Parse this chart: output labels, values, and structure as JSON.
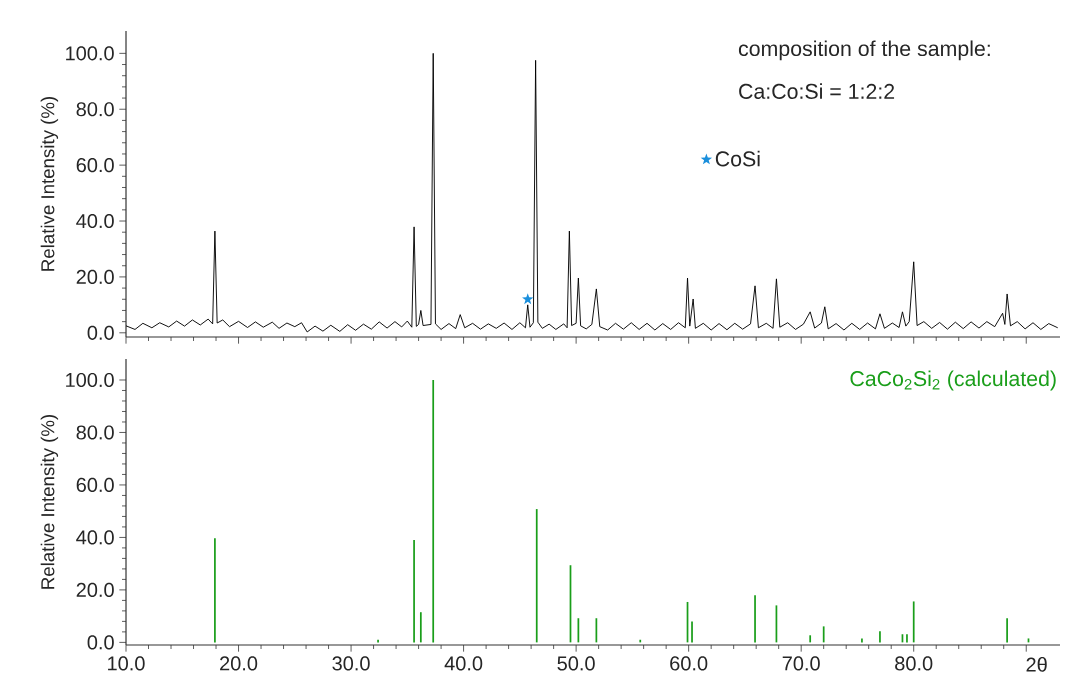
{
  "chart_data": [
    {
      "type": "line",
      "ylabel": "Relative Intensity (%)",
      "annotations": [
        "composition of the sample:",
        "Ca:Co:Si = 1:2:2"
      ],
      "legend": "right",
      "tick_labels": "y",
      "xlim": [
        10,
        93
      ],
      "xticks": [
        10,
        20,
        30,
        40,
        50,
        60,
        70,
        80,
        90
      ],
      "ylim": [
        -1.5,
        108
      ],
      "yticks": [
        {
          "value": 0,
          "label": "0.0"
        },
        {
          "value": 20,
          "label": "20.0"
        },
        {
          "value": 40,
          "label": "40.0"
        },
        {
          "value": 60,
          "label": "60.0"
        },
        {
          "value": 80,
          "label": "80.0"
        },
        {
          "value": 100,
          "label": "100.0"
        }
      ],
      "series": [
        {
          "color": "#000000",
          "x": [
            10,
            10.8,
            11.5,
            12.3,
            13,
            13.8,
            14.5,
            15.2,
            15.9,
            16.6,
            17.3,
            17.7,
            17.9,
            18.1,
            18.6,
            19.2,
            20,
            20.8,
            21.5,
            22.2,
            23,
            23.6,
            24.3,
            25,
            25.6,
            26.1,
            26.8,
            27.5,
            28.2,
            29,
            29.7,
            30.4,
            31.1,
            31.8,
            32.5,
            33.2,
            33.9,
            34.5,
            35,
            35.4,
            35.6,
            35.8,
            36.0,
            36.2,
            36.4,
            37.1,
            37.3,
            37.5,
            38,
            38.7,
            39.3,
            39.7,
            40.1,
            40.8,
            41.5,
            42.2,
            42.9,
            43.6,
            44.3,
            45,
            45.5,
            45.7,
            45.9,
            46.2,
            46.4,
            46.6,
            47,
            47.6,
            48.2,
            48.9,
            49.2,
            49.4,
            49.6,
            50.0,
            50.2,
            50.4,
            50.9,
            51.4,
            51.8,
            52.1,
            52.8,
            53.5,
            54.2,
            54.9,
            55.6,
            56.3,
            57,
            57.7,
            58.4,
            59.1,
            59.7,
            59.9,
            60.1,
            60.4,
            60.6,
            61.3,
            62,
            62.7,
            63.4,
            64.1,
            64.8,
            65.5,
            65.9,
            66.2,
            66.9,
            67.5,
            67.8,
            68.1,
            68.8,
            69.5,
            70.2,
            70.8,
            71.2,
            71.8,
            72.1,
            72.4,
            73.1,
            73.8,
            74.5,
            75.2,
            75.9,
            76.6,
            77.0,
            77.4,
            78.1,
            78.7,
            79.0,
            79.3,
            79.6,
            80.0,
            80.3,
            80.9,
            81.6,
            82.3,
            83,
            83.7,
            84.4,
            85.1,
            85.8,
            86.5,
            87.2,
            87.9,
            88.1,
            88.3,
            88.6,
            89.2,
            89.9,
            90.6,
            91.3,
            92,
            92.8
          ],
          "values": [
            2.5,
            1.2,
            3.4,
            1.8,
            3.6,
            2.1,
            4.2,
            2.4,
            4.6,
            2.8,
            4.9,
            3.2,
            36.4,
            3.5,
            4.6,
            2.2,
            4.1,
            1.9,
            3.9,
            2.0,
            3.8,
            1.6,
            3.5,
            2.2,
            3.6,
            0.3,
            2.4,
            0.6,
            2.7,
            0.5,
            2.9,
            0.9,
            3.1,
            1.3,
            3.9,
            1.7,
            4.0,
            2.1,
            4.2,
            2.0,
            37.9,
            2.3,
            3.0,
            8.0,
            2.6,
            3.0,
            100,
            3.2,
            1.2,
            3.3,
            1.5,
            6.5,
            1.8,
            3.4,
            1.3,
            3.2,
            1.6,
            3.5,
            1.2,
            3.6,
            1.8,
            10,
            2.0,
            3.6,
            97.5,
            3.8,
            1.6,
            3.1,
            1.2,
            3.2,
            1.8,
            36.4,
            2.6,
            3.4,
            19.6,
            2.5,
            1.4,
            3.0,
            15.7,
            2.2,
            1.0,
            3.4,
            1.3,
            3.6,
            1.2,
            3.4,
            1.0,
            3.3,
            1.2,
            3.6,
            1.8,
            19.6,
            2.4,
            12.1,
            1.6,
            3.4,
            1.0,
            3.3,
            1.1,
            3.4,
            1.3,
            3.2,
            16.8,
            1.8,
            3.4,
            1.6,
            19.3,
            2.0,
            3.6,
            1.2,
            3.1,
            7.5,
            1.7,
            3.5,
            9.3,
            1.4,
            3.3,
            1.0,
            3.4,
            1.2,
            3.5,
            1.4,
            6.8,
            1.6,
            3.5,
            1.9,
            7.5,
            2.4,
            4.0,
            25.4,
            2.6,
            4.0,
            1.6,
            3.7,
            1.3,
            3.8,
            1.5,
            3.9,
            1.7,
            4.0,
            2.2,
            7.0,
            3.0,
            13.9,
            2.5,
            4.0,
            1.4,
            3.6,
            1.2,
            3.3,
            1.8
          ]
        },
        {
          "name": "CoSi",
          "type": "scatter",
          "marker": "star",
          "color": "#1a8fdc",
          "x": [
            45.7
          ],
          "values": [
            12
          ]
        }
      ]
    },
    {
      "type": "bar",
      "xlabel": "2θ",
      "ylabel": "Relative Intensity (%)",
      "legend": "top right",
      "xlim": [
        10,
        93
      ],
      "xticks": [
        {
          "value": 10,
          "label": "10.0"
        },
        {
          "value": 20,
          "label": "20.0"
        },
        {
          "value": 30,
          "label": "30.0"
        },
        {
          "value": 40,
          "label": "40.0"
        },
        {
          "value": 50,
          "label": "50.0"
        },
        {
          "value": 60,
          "label": "60.0"
        },
        {
          "value": 70,
          "label": "70.0"
        },
        {
          "value": 80,
          "label": "80.0"
        },
        {
          "value": 90,
          "label": null
        }
      ],
      "ylim": [
        -1,
        108
      ],
      "yticks": [
        {
          "value": 0,
          "label": "0.0"
        },
        {
          "value": 20,
          "label": "20.0"
        },
        {
          "value": 40,
          "label": "40.0"
        },
        {
          "value": 60,
          "label": "60.0"
        },
        {
          "value": 80,
          "label": "80.0"
        },
        {
          "value": 100,
          "label": "100.0"
        }
      ],
      "x": [
        17.9,
        32.4,
        35.6,
        36.2,
        37.3,
        46.5,
        49.5,
        50.2,
        51.8,
        55.7,
        59.9,
        60.3,
        65.9,
        67.8,
        70.8,
        72.0,
        75.4,
        77.0,
        79.0,
        79.4,
        80.0,
        88.3,
        90.2
      ],
      "series": [
        {
          "name": "CaCo$_{2}$Si$_{2}$ (calculated)",
          "color": "#1a9e1a",
          "values": [
            39.7,
            1,
            39,
            11.5,
            100,
            50.8,
            29.4,
            9.2,
            9.2,
            1,
            15.4,
            8.0,
            18,
            14.1,
            2.7,
            6.1,
            1.5,
            4.2,
            3.1,
            3.1,
            15.6,
            9.2,
            1.5
          ]
        }
      ]
    }
  ]
}
